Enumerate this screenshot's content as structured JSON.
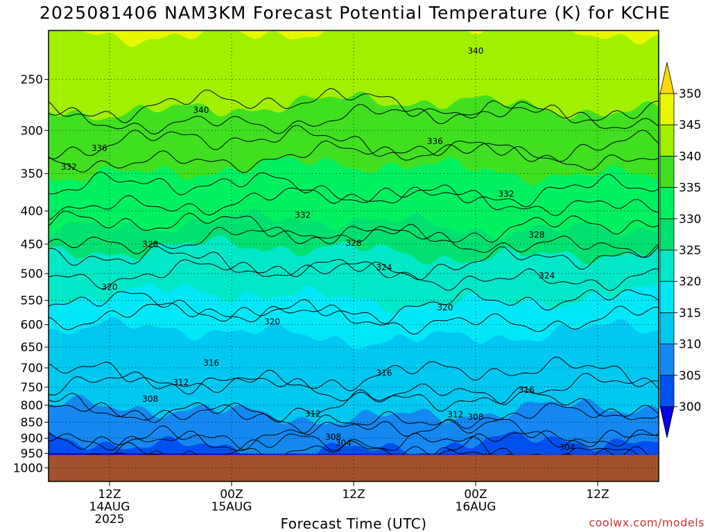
{
  "title": "2025081406 NAM3KM Forecast Potential Temperature (K) for KCHE",
  "chart_data": {
    "type": "contour",
    "title": "2025081406 NAM3KM Forecast Potential Temperature (K) for KCHE",
    "xlabel": "Forecast Time (UTC)",
    "ylabel": "",
    "y_scale": "log (pressure, hPa)",
    "ylim": [
      200,
      1000
    ],
    "y_ticks": [
      250,
      300,
      350,
      400,
      450,
      500,
      550,
      600,
      650,
      700,
      750,
      800,
      850,
      900,
      950,
      1000
    ],
    "x_ticks": [
      {
        "time": "2025-08-14 12Z",
        "label": [
          "12Z",
          "14AUG",
          "2025"
        ]
      },
      {
        "time": "2025-08-15 00Z",
        "label": [
          "00Z",
          "15AUG"
        ]
      },
      {
        "time": "2025-08-15 12Z",
        "label": [
          "12Z"
        ]
      },
      {
        "time": "2025-08-16 00Z",
        "label": [
          "00Z",
          "16AUG"
        ]
      },
      {
        "time": "2025-08-16 12Z",
        "label": [
          "12Z"
        ]
      }
    ],
    "xlim": [
      "2025-08-14 06Z",
      "2025-08-16 18Z"
    ],
    "grid": true,
    "surface_pressure_hpa": 955,
    "colorbar": {
      "levels": [
        300,
        305,
        310,
        315,
        320,
        325,
        330,
        335,
        340,
        345,
        350
      ],
      "labels": [
        "300",
        "305",
        "310",
        "315",
        "320",
        "325",
        "330",
        "335",
        "340",
        "345",
        "350"
      ],
      "colors": [
        "#0000e0",
        "#0050f0",
        "#1488f0",
        "#00c8f0",
        "#00e8f8",
        "#00e8c8",
        "#00e070",
        "#00f060",
        "#40e020",
        "#a0f000",
        "#e8f800",
        "#ffd800"
      ]
    },
    "isotherm_interval_k": 4,
    "band_boundaries": [
      {
        "theta": 305,
        "pressure_hpa": 925
      },
      {
        "theta": 310,
        "pressure_hpa": 820
      },
      {
        "theta": 315,
        "pressure_hpa": 620
      },
      {
        "theta": 320,
        "pressure_hpa": 545
      },
      {
        "theta": 325,
        "pressure_hpa": 462
      },
      {
        "theta": 330,
        "pressure_hpa": 420
      },
      {
        "theta": 335,
        "pressure_hpa": 345
      },
      {
        "theta": 340,
        "pressure_hpa": 275
      },
      {
        "theta": 345,
        "pressure_hpa": 210
      }
    ],
    "contours": [
      {
        "theta": 340,
        "pressure_hpa": 275
      },
      {
        "theta": 336,
        "pressure_hpa": 315
      },
      {
        "theta": 332,
        "pressure_hpa": 370
      },
      {
        "theta": 328,
        "pressure_hpa": 425
      },
      {
        "theta": 324,
        "pressure_hpa": 480
      },
      {
        "theta": 320,
        "pressure_hpa": 560
      },
      {
        "theta": 316,
        "pressure_hpa": 720
      },
      {
        "theta": 312,
        "pressure_hpa": 800
      },
      {
        "theta": 308,
        "pressure_hpa": 880
      },
      {
        "theta": 304,
        "pressure_hpa": 935
      }
    ],
    "contour_labels": [
      {
        "text": "340",
        "time": "2025-08-14 21Z",
        "pressure_hpa": 282
      },
      {
        "text": "340",
        "time": "2025-08-16 00Z",
        "pressure_hpa": 228
      },
      {
        "text": "336",
        "time": "2025-08-14 11Z",
        "pressure_hpa": 323
      },
      {
        "text": "336",
        "time": "2025-08-15 20Z",
        "pressure_hpa": 315
      },
      {
        "text": "332",
        "time": "2025-08-14 08Z",
        "pressure_hpa": 345
      },
      {
        "text": "332",
        "time": "2025-08-15 07Z",
        "pressure_hpa": 410
      },
      {
        "text": "332",
        "time": "2025-08-16 03Z",
        "pressure_hpa": 380
      },
      {
        "text": "328",
        "time": "2025-08-14 16Z",
        "pressure_hpa": 455
      },
      {
        "text": "328",
        "time": "2025-08-15 12Z",
        "pressure_hpa": 453
      },
      {
        "text": "328",
        "time": "2025-08-16 06Z",
        "pressure_hpa": 440
      },
      {
        "text": "324",
        "time": "2025-08-15 15Z",
        "pressure_hpa": 494
      },
      {
        "text": "324",
        "time": "2025-08-16 07Z",
        "pressure_hpa": 509
      },
      {
        "text": "320",
        "time": "2025-08-14 12Z",
        "pressure_hpa": 530
      },
      {
        "text": "320",
        "time": "2025-08-15 04Z",
        "pressure_hpa": 600
      },
      {
        "text": "320",
        "time": "2025-08-15 21Z",
        "pressure_hpa": 570
      },
      {
        "text": "316",
        "time": "2025-08-14 22Z",
        "pressure_hpa": 695
      },
      {
        "text": "316",
        "time": "2025-08-15 15Z",
        "pressure_hpa": 720
      },
      {
        "text": "316",
        "time": "2025-08-16 05Z",
        "pressure_hpa": 765
      },
      {
        "text": "312",
        "time": "2025-08-14 19Z",
        "pressure_hpa": 745
      },
      {
        "text": "312",
        "time": "2025-08-15 08Z",
        "pressure_hpa": 833
      },
      {
        "text": "312",
        "time": "2025-08-15 22Z",
        "pressure_hpa": 835
      },
      {
        "text": "308",
        "time": "2025-08-14 16Z",
        "pressure_hpa": 790
      },
      {
        "text": "308",
        "time": "2025-08-16 00Z",
        "pressure_hpa": 843
      },
      {
        "text": "308",
        "time": "2025-08-15 10Z",
        "pressure_hpa": 905
      },
      {
        "text": "304",
        "time": "2025-08-15 11Z",
        "pressure_hpa": 925
      },
      {
        "text": "304",
        "time": "2025-08-16 09Z",
        "pressure_hpa": 940
      }
    ]
  },
  "credit": "coolwx.com/models"
}
